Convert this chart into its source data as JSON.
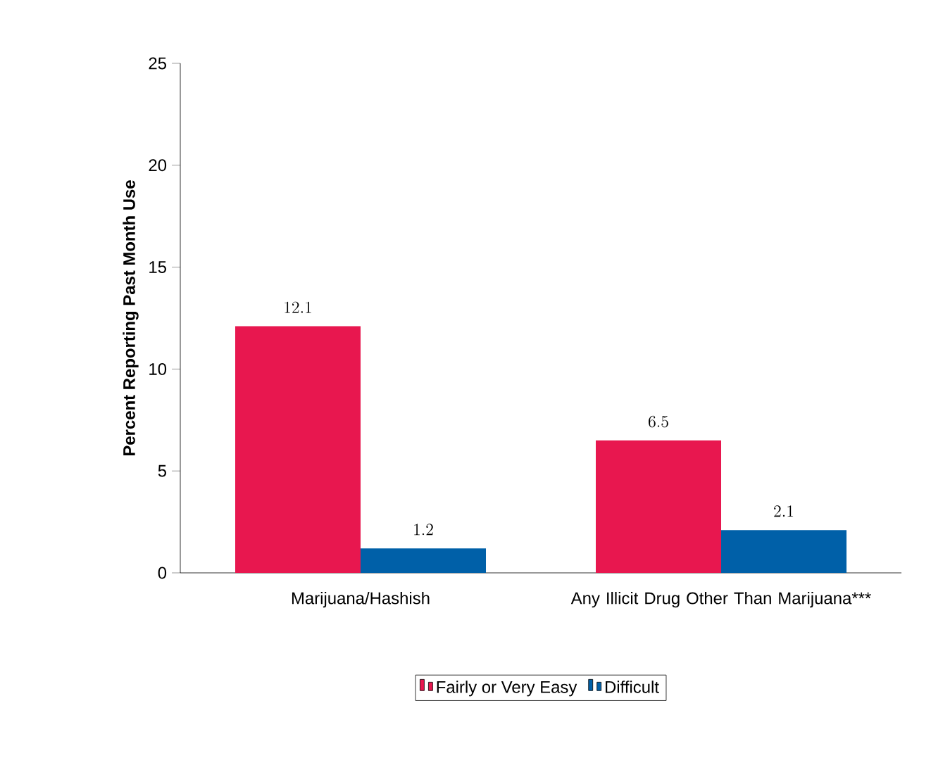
{
  "chart_data": {
    "type": "bar",
    "ylabel": "Percent Reporting Past Month Use",
    "categories": [
      "Marijuana/Hashish",
      "Any Illicit Drug Other Than Marijuana***"
    ],
    "series": [
      {
        "name": "Fairly or Very Easy",
        "color": "#e8174f",
        "values": [
          12.1,
          6.5
        ]
      },
      {
        "name": "Difficult",
        "color": "#0060a8",
        "values": [
          1.2,
          2.1
        ]
      }
    ],
    "ylim": [
      0,
      25
    ],
    "yticks": [
      0,
      5,
      10,
      15,
      20,
      25
    ],
    "data_labels": true,
    "legend": "bottom",
    "grid": false
  }
}
